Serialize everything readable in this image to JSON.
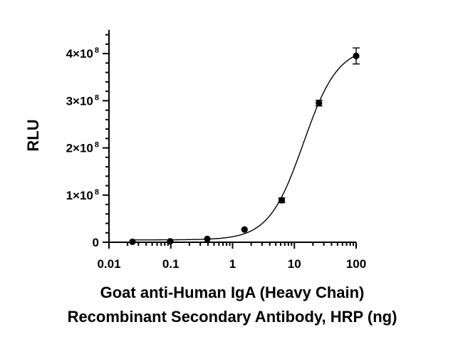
{
  "chart_data": {
    "type": "scatter",
    "xscale": "log",
    "xlim": [
      0.01,
      100
    ],
    "ylim": [
      0,
      440000000
    ],
    "grid": false,
    "xlabel_lines": [
      "Goat anti-Human IgA (Heavy Chain)",
      "Recombinant Secondary Antibody, HRP (ng)"
    ],
    "ylabel": "RLU",
    "x_ticks": [
      {
        "value": 0.01,
        "label": "0.01"
      },
      {
        "value": 0.1,
        "label": "0.1"
      },
      {
        "value": 1,
        "label": "1"
      },
      {
        "value": 10,
        "label": "10"
      },
      {
        "value": 100,
        "label": "100"
      }
    ],
    "y_ticks": [
      {
        "value": 0,
        "base": "0",
        "sup": ""
      },
      {
        "value": 100000000,
        "base": "1×10",
        "sup": "8"
      },
      {
        "value": 200000000,
        "base": "2×10",
        "sup": "8"
      },
      {
        "value": 300000000,
        "base": "3×10",
        "sup": "8"
      },
      {
        "value": 400000000,
        "base": "4×10",
        "sup": "8"
      }
    ],
    "points": [
      {
        "x": 0.024,
        "y": 1000000,
        "err": 0
      },
      {
        "x": 0.098,
        "y": 2000000,
        "err": 0
      },
      {
        "x": 0.39,
        "y": 7000000,
        "err": 0
      },
      {
        "x": 1.56,
        "y": 27000000,
        "err": 0
      },
      {
        "x": 6.25,
        "y": 89000000,
        "err": 5000000
      },
      {
        "x": 25,
        "y": 295000000,
        "err": 6000000
      },
      {
        "x": 100,
        "y": 395000000,
        "err": 17000000
      }
    ],
    "fit": {
      "bottom": 5000000,
      "top": 415000000,
      "ec50": 14,
      "hill": 1.55
    }
  }
}
